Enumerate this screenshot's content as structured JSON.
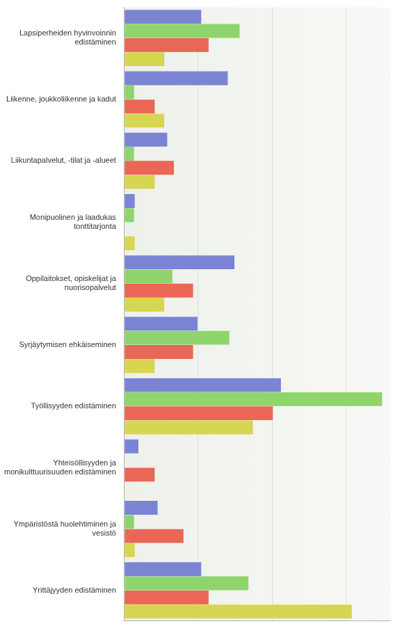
{
  "chart_data": {
    "type": "bar",
    "orientation": "horizontal",
    "categories": [
      "Lapsiperheiden hyvinvoinnin\nedistäminen",
      "Liikenne, joukkoliikenne ja kadut",
      "Liikuntapalvelut, -tilat ja -alueet",
      "Monipuolinen ja laadukas\ntonttitarjonta",
      "Oppilaitokset, opiskelijat ja\nnuorisopalvelut",
      "Syrjäytymisen ehkäiseminen",
      "Työllisyyden edistäminen",
      "Yhteisöllisyyden ja\nmonikulttuurisuuden edistäminen",
      "Ympäristöstä huolehtiminen ja\nvesistö",
      "Yrittäjyyden edistäminen"
    ],
    "series": [
      {
        "color": "#7b84d4",
        "values": [
          10.4,
          14.0,
          5.8,
          1.4,
          14.9,
          9.9,
          21.2,
          1.9,
          4.5,
          10.4
        ]
      },
      {
        "color": "#8fd46c",
        "values": [
          15.6,
          1.3,
          1.3,
          1.3,
          6.5,
          14.2,
          34.9,
          0,
          1.3,
          16.8
        ]
      },
      {
        "color": "#ea6656",
        "values": [
          11.4,
          4.1,
          6.7,
          0,
          9.3,
          9.3,
          20.1,
          4.1,
          8.0,
          11.4
        ]
      },
      {
        "color": "#d6d650",
        "values": [
          5.4,
          5.4,
          4.1,
          1.4,
          5.4,
          4.1,
          17.4,
          0,
          1.4,
          30.8
        ]
      }
    ],
    "xlim": [
      0,
      36
    ],
    "xticks": [
      0,
      10,
      20,
      30
    ],
    "grid": true,
    "tick_labels": "y"
  }
}
